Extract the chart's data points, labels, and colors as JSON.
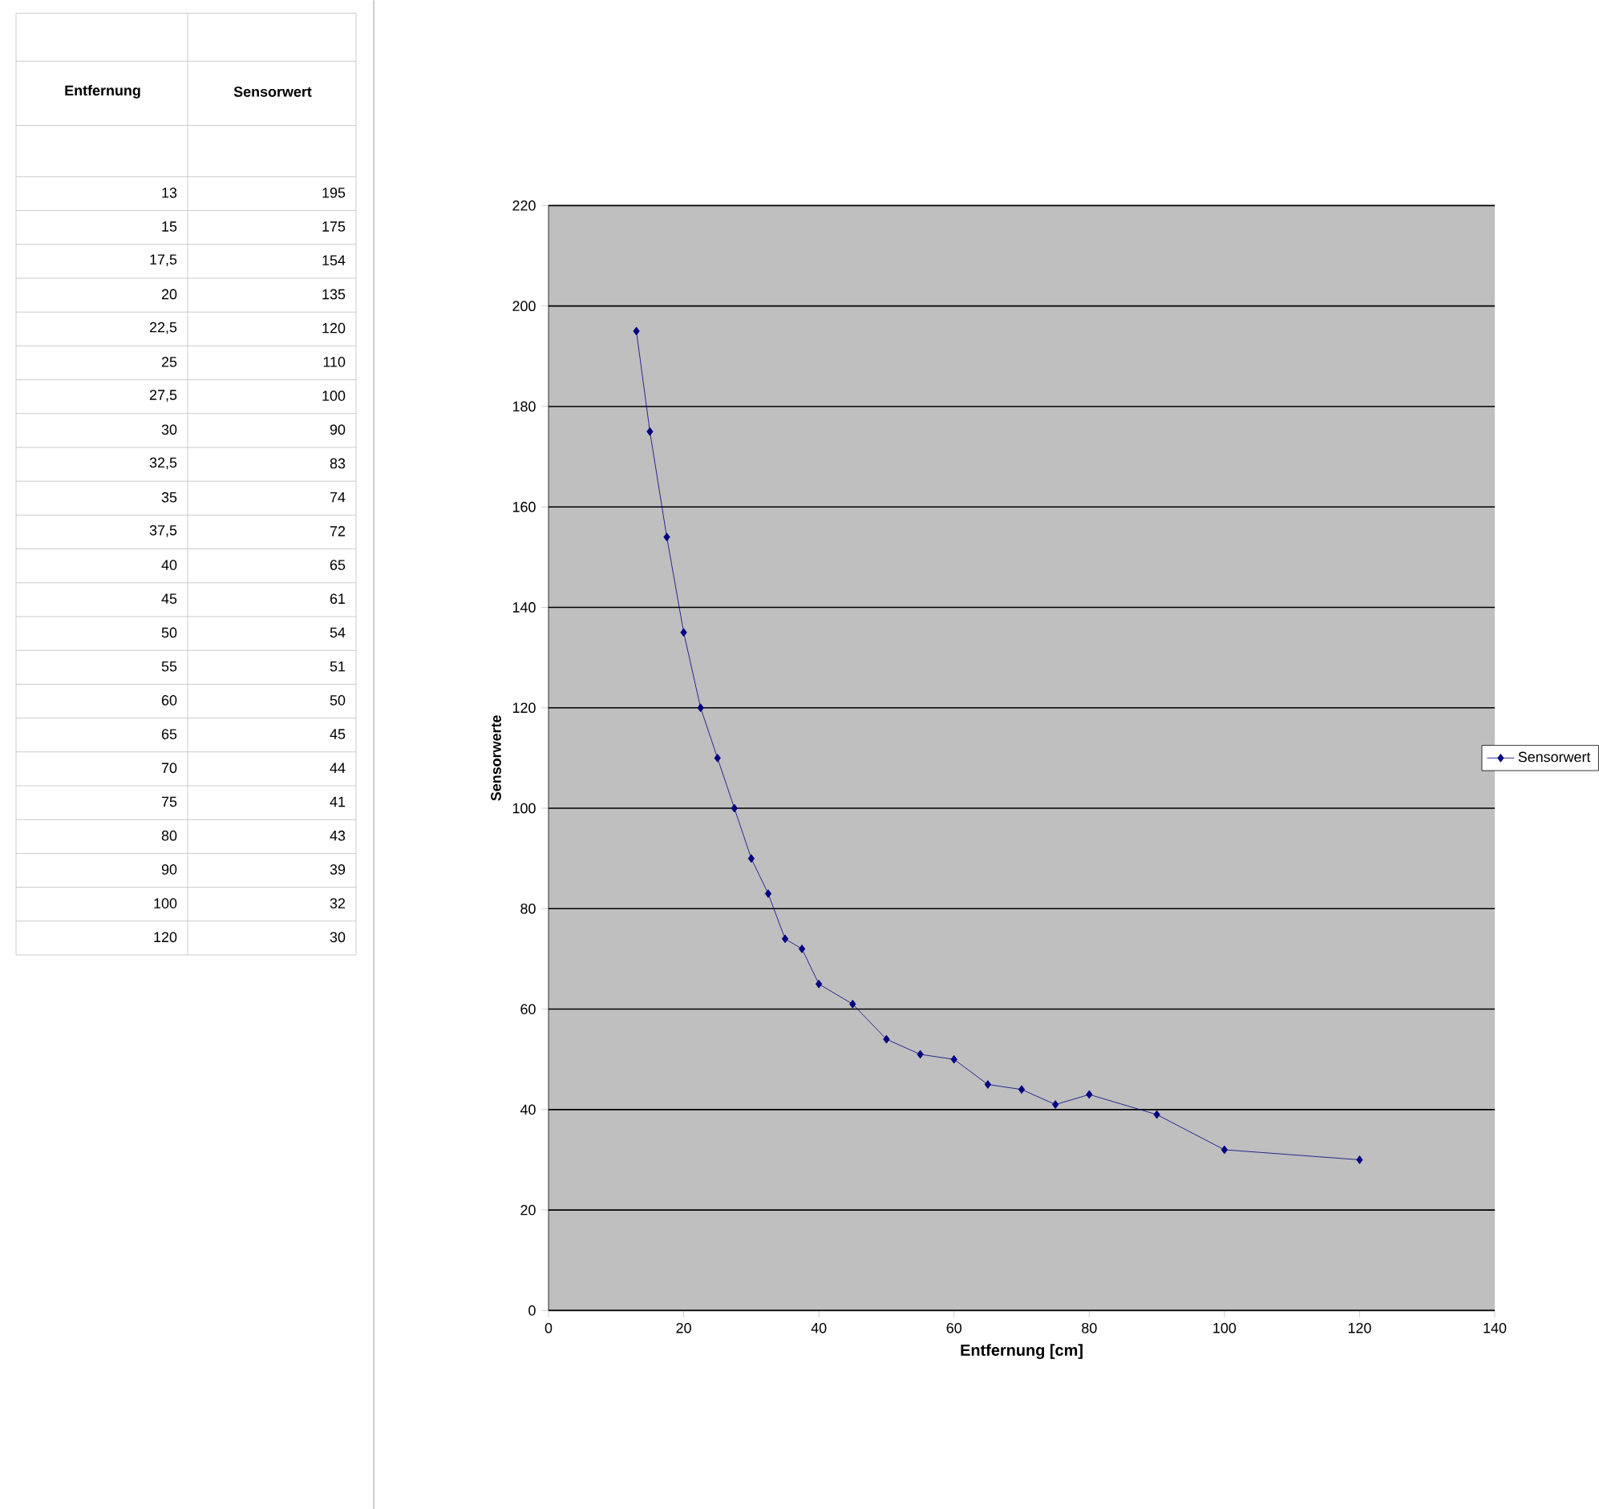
{
  "chart_data": [
    {
      "type": "other",
      "annotations": [
        "Entfernung",
        "Sensorwert",
        "13",
        "195",
        "15",
        "175",
        "17,5",
        "154",
        "20",
        "135",
        "22,5",
        "120",
        "25",
        "110",
        "27,5",
        "100",
        "30",
        "90",
        "32,5",
        "83",
        "35",
        "74",
        "37,5",
        "72",
        "40",
        "65",
        "45",
        "61",
        "50",
        "54",
        "55",
        "51",
        "60",
        "50",
        "65",
        "45",
        "70",
        "44",
        "75",
        "41",
        "80",
        "43",
        "90",
        "39",
        "100",
        "32",
        "120",
        "30"
      ]
    },
    {
      "type": "line",
      "xlabel": "Entfernung [cm]",
      "ylabel": "Sensorwerte",
      "x": [
        13,
        15,
        17.5,
        20,
        22.5,
        25,
        27.5,
        30,
        32.5,
        35,
        37.5,
        40,
        45,
        50,
        55,
        60,
        65,
        70,
        75,
        80,
        90,
        100,
        120
      ],
      "series": [
        {
          "name": "Sensorwert",
          "color": "#000080",
          "values": [
            195,
            175,
            154,
            135,
            120,
            110,
            100,
            90,
            83,
            74,
            72,
            65,
            61,
            54,
            51,
            50,
            45,
            44,
            41,
            43,
            39,
            32,
            30
          ]
        }
      ],
      "xlim": [
        0,
        140
      ],
      "xticks": [
        0,
        20,
        40,
        60,
        80,
        100,
        120,
        140
      ],
      "ylim": [
        0,
        220
      ],
      "yticks": [
        0,
        20,
        40,
        60,
        80,
        100,
        120,
        140,
        160,
        180,
        200,
        220
      ],
      "grid": "y",
      "legend": "right",
      "marker": "diamond",
      "line_style": "solid"
    }
  ]
}
